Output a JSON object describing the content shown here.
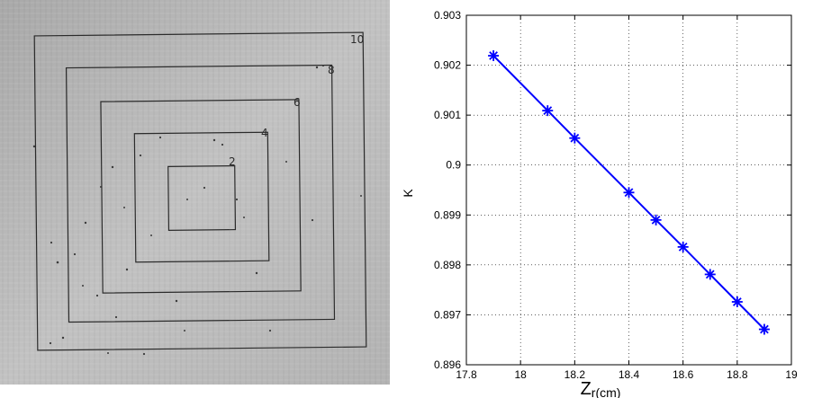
{
  "photo": {
    "square_labels": [
      "10",
      "8",
      "6",
      "4",
      "2"
    ],
    "square_line_color": "#2b2b2b",
    "background_color": "#b9b9b9"
  },
  "chart_data": {
    "type": "line",
    "marker": "asterisk",
    "line_color": "#0000ff",
    "ylabel": "K",
    "xlabel_main": "Z",
    "xlabel_sub": "r(cm)",
    "xlim": [
      17.8,
      19
    ],
    "ylim": [
      0.896,
      0.903
    ],
    "grid": true,
    "grid_style": "dotted",
    "x_ticks": [
      17.8,
      18,
      18.2,
      18.4,
      18.6,
      18.8,
      19
    ],
    "x_tick_labels": [
      "17.8",
      "18",
      "18.2",
      "18.4",
      "18.6",
      "18.8",
      "19"
    ],
    "y_ticks": [
      0.896,
      0.897,
      0.898,
      0.899,
      0.9,
      0.901,
      0.902,
      0.903
    ],
    "y_tick_labels": [
      "0.896",
      "0.897",
      "0.898",
      "0.899",
      "0.9",
      "0.901",
      "0.902",
      "0.903"
    ],
    "series": [
      {
        "x": [
          17.9,
          18.1,
          18.2,
          18.4,
          18.5,
          18.6,
          18.7,
          18.8,
          18.9
        ],
        "values": [
          0.90219,
          0.90109,
          0.90054,
          0.89945,
          0.8989,
          0.89836,
          0.89781,
          0.89726,
          0.89671
        ]
      }
    ]
  }
}
